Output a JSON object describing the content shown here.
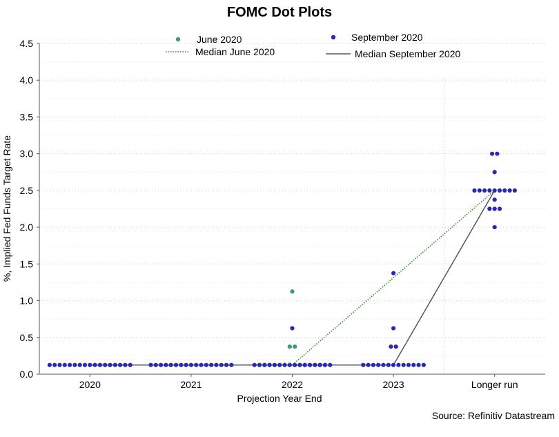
{
  "chart_data": {
    "type": "scatter",
    "title": "FOMC Dot Plots",
    "xlabel": "Projection Year End",
    "ylabel": "%, Implied Fed Funds Target Rate",
    "source": "Source: Refinitiv Datastream",
    "categories": [
      "2020",
      "2021",
      "2022",
      "2023",
      "Longer run"
    ],
    "ylim": [
      0,
      4.5
    ],
    "yticks": [
      "0.0",
      "0.5",
      "1.0",
      "1.5",
      "2.0",
      "2.5",
      "3.0",
      "3.5",
      "4.0",
      "4.5"
    ],
    "grid": true,
    "legend_position": "top",
    "series": [
      {
        "name": "June 2020",
        "kind": "dots",
        "color": "#3d9a6e",
        "points": [
          {
            "category": "2022",
            "values": [
              0.125,
              0.125,
              0.125,
              0.125,
              0.125,
              0.125,
              0.125,
              0.125,
              0.125,
              0.125,
              0.125,
              0.125,
              0.125,
              0.125,
              0.375,
              0.375,
              1.125
            ]
          }
        ]
      },
      {
        "name": "September 2020",
        "kind": "dots",
        "color": "#2a2aa8",
        "points": [
          {
            "category": "2020",
            "values": [
              0.125,
              0.125,
              0.125,
              0.125,
              0.125,
              0.125,
              0.125,
              0.125,
              0.125,
              0.125,
              0.125,
              0.125,
              0.125,
              0.125,
              0.125,
              0.125,
              0.125
            ]
          },
          {
            "category": "2021",
            "values": [
              0.125,
              0.125,
              0.125,
              0.125,
              0.125,
              0.125,
              0.125,
              0.125,
              0.125,
              0.125,
              0.125,
              0.125,
              0.125,
              0.125,
              0.125,
              0.125,
              0.125
            ]
          },
          {
            "category": "2022",
            "values": [
              0.125,
              0.125,
              0.125,
              0.125,
              0.125,
              0.125,
              0.125,
              0.125,
              0.125,
              0.125,
              0.125,
              0.125,
              0.125,
              0.125,
              0.125,
              0.125,
              0.625
            ]
          },
          {
            "category": "2023",
            "values": [
              0.125,
              0.125,
              0.125,
              0.125,
              0.125,
              0.125,
              0.125,
              0.125,
              0.125,
              0.125,
              0.125,
              0.125,
              0.125,
              0.375,
              0.375,
              0.625,
              1.375
            ]
          },
          {
            "category": "Longer run",
            "values": [
              2.0,
              2.25,
              2.25,
              2.25,
              2.375,
              2.5,
              2.5,
              2.5,
              2.5,
              2.5,
              2.5,
              2.5,
              2.5,
              2.5,
              2.75,
              3.0,
              3.0
            ]
          }
        ]
      },
      {
        "name": "Median June 2020",
        "kind": "line",
        "style": "dotted",
        "color": "#2e8b2e",
        "x": [
          "2020",
          "2021",
          "2022",
          "Longer run"
        ],
        "values": [
          0.125,
          0.125,
          0.125,
          2.5
        ]
      },
      {
        "name": "Median September 2020",
        "kind": "line",
        "style": "solid",
        "color": "#555560",
        "x": [
          "2020",
          "2021",
          "2022",
          "2023",
          "Longer run"
        ],
        "values": [
          0.125,
          0.125,
          0.125,
          0.125,
          2.5
        ]
      }
    ]
  }
}
